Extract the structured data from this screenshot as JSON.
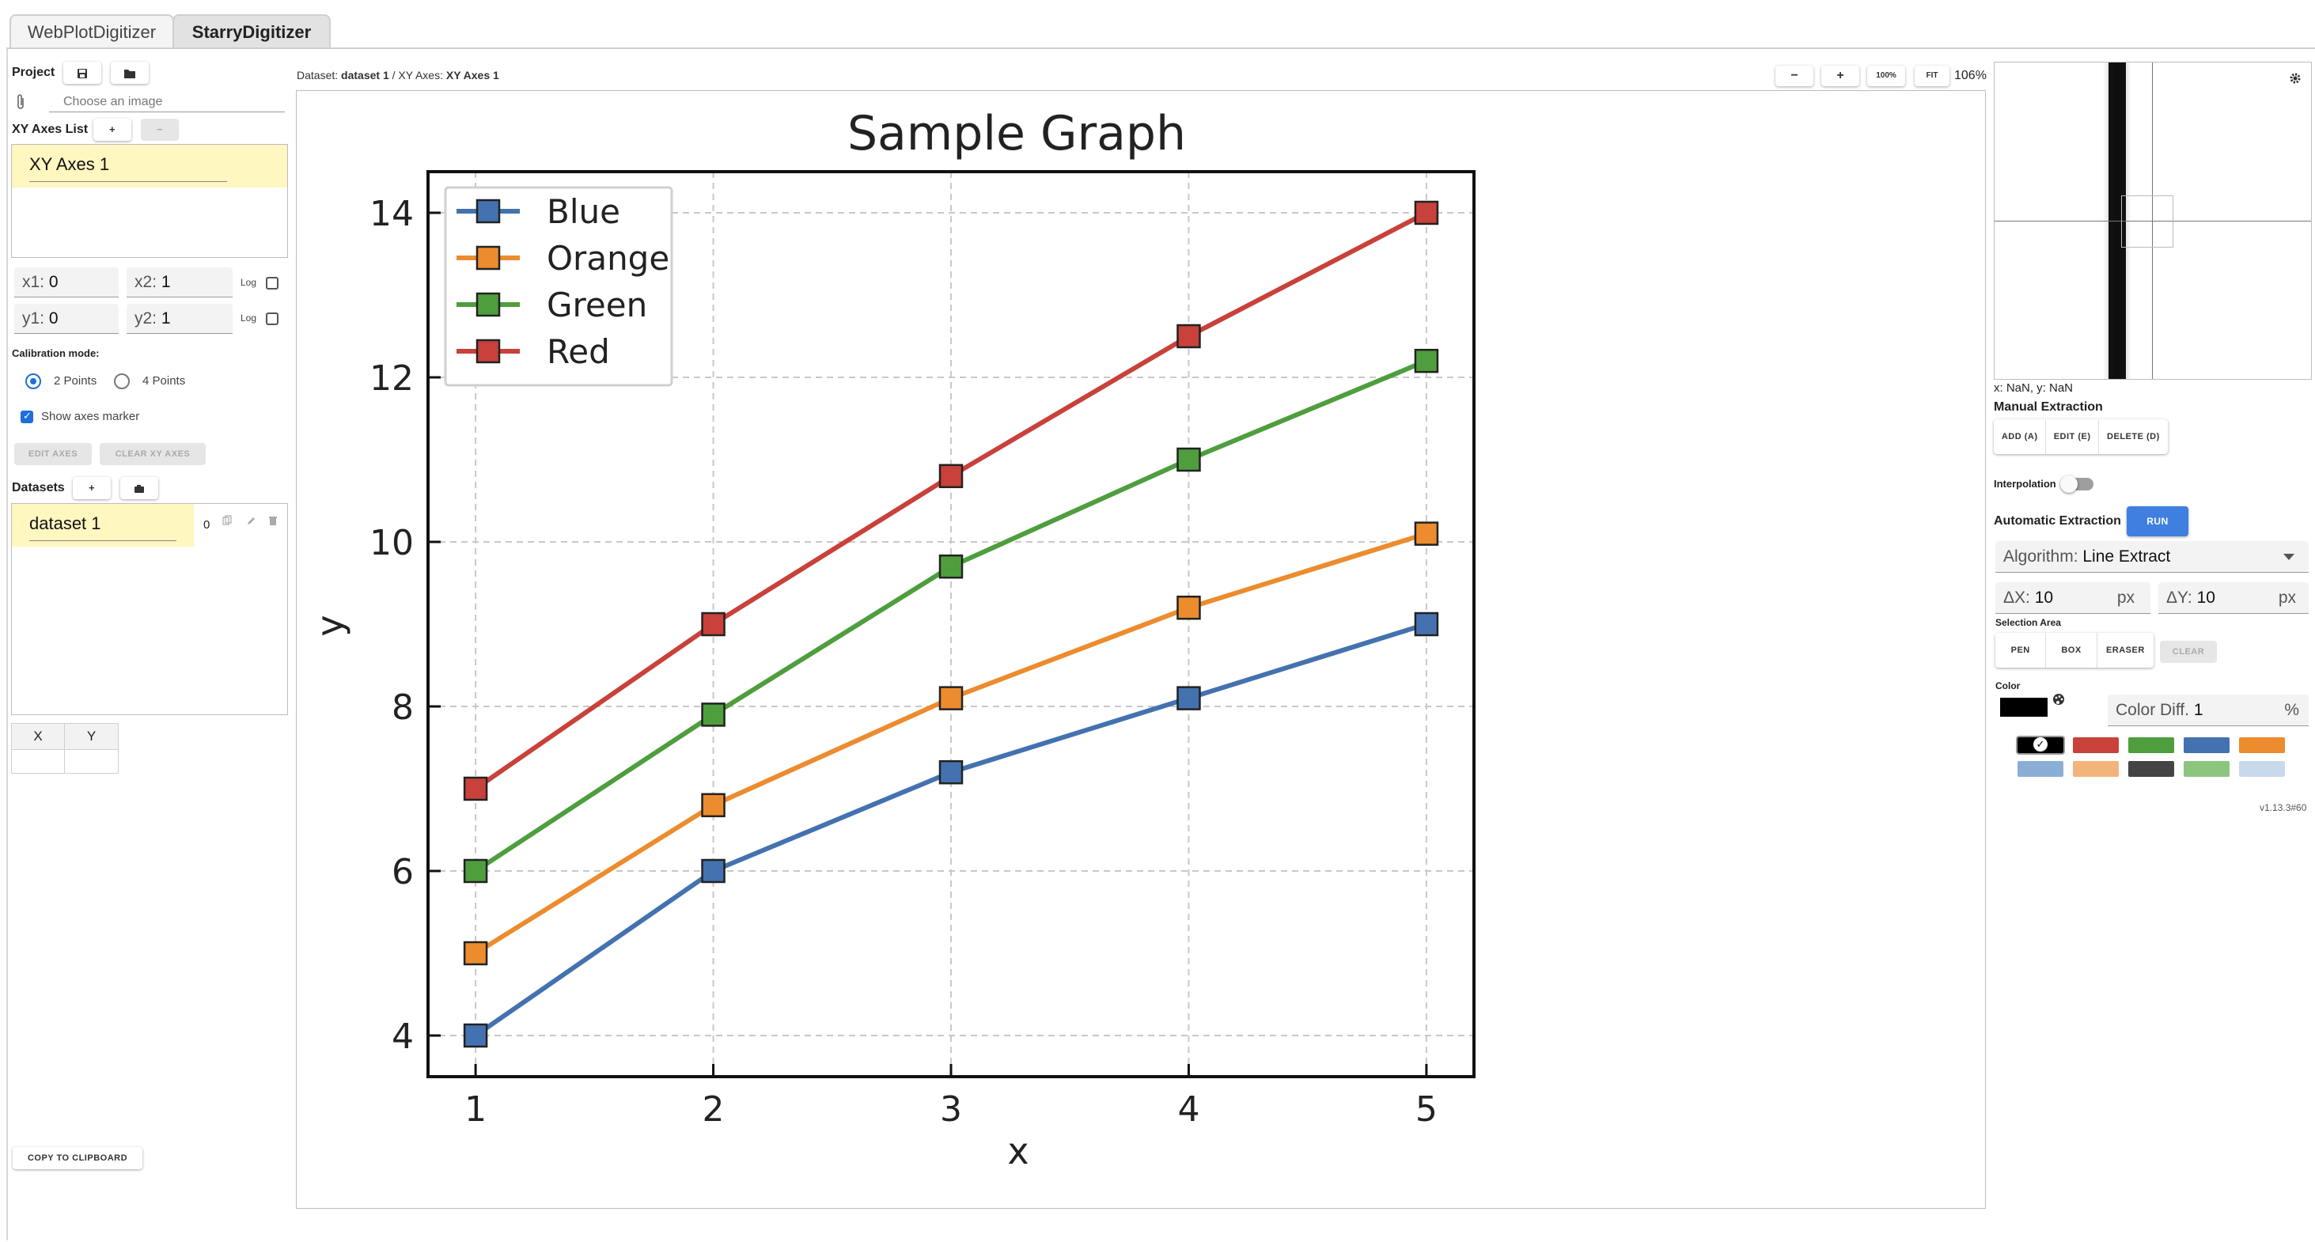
{
  "tabs": [
    {
      "label": "WebPlotDigitizer",
      "active": false
    },
    {
      "label": "StarryDigitizer",
      "active": true
    }
  ],
  "project": {
    "label": "Project",
    "save_icon": "floppy-icon",
    "open_icon": "folder-icon",
    "image_placeholder": "Choose an image"
  },
  "axes": {
    "list_label": "XY Axes List",
    "add_label": "+",
    "remove_label": "−",
    "items": [
      "XY Axes 1"
    ],
    "x1_label": "x1:",
    "x1": "0",
    "x2_label": "x2:",
    "x2": "1",
    "y1_label": "y1:",
    "y1": "0",
    "y2_label": "y2:",
    "y2": "1",
    "log_label": "Log",
    "calibration_label": "Calibration mode:",
    "mode_2": "2 Points",
    "mode_4": "4 Points",
    "show_marker_label": "Show axes marker",
    "edit_label": "EDIT AXES",
    "clear_label": "CLEAR XY AXES"
  },
  "datasets": {
    "label": "Datasets",
    "add_label": "+",
    "items": [
      {
        "name": "dataset 1",
        "count": "0"
      }
    ],
    "table_headers": [
      "X",
      "Y"
    ],
    "copy_label": "COPY TO CLIPBOARD"
  },
  "breadcrumb": {
    "dataset_prefix": "Dataset:",
    "dataset": "dataset 1",
    "sep": "/",
    "axes_prefix": "XY Axes:",
    "axes": "XY Axes 1"
  },
  "zoom": {
    "minus": "−",
    "plus": "+",
    "hundred": "100%",
    "fit": "FIT",
    "level": "106%"
  },
  "chart_data": {
    "type": "line",
    "title": "Sample Graph",
    "xlabel": "x",
    "ylabel": "y",
    "x": [
      1,
      2,
      3,
      4,
      5
    ],
    "xlim": [
      0.8,
      5.2
    ],
    "ylim": [
      3.5,
      14.5
    ],
    "xticks": [
      "1",
      "2",
      "3",
      "4",
      "5"
    ],
    "yticks": [
      "4",
      "6",
      "8",
      "10",
      "12",
      "14"
    ],
    "grid": true,
    "legend_position": "top-left",
    "series": [
      {
        "name": "Blue",
        "color": "#4472b0",
        "values": [
          4,
          6,
          7.2,
          8.1,
          9
        ]
      },
      {
        "name": "Orange",
        "color": "#ec8c2e",
        "values": [
          5,
          6.8,
          8.1,
          9.2,
          10.1
        ]
      },
      {
        "name": "Green",
        "color": "#4e9e3e",
        "values": [
          6,
          7.9,
          9.7,
          11,
          12.2
        ]
      },
      {
        "name": "Red",
        "color": "#c8413a",
        "values": [
          7,
          9,
          10.8,
          12.5,
          14
        ]
      }
    ]
  },
  "magnifier": {
    "settings_icon": "gear-icon",
    "coords": "x: NaN, y: NaN"
  },
  "manual": {
    "label": "Manual Extraction",
    "add": "ADD (A)",
    "edit": "EDIT (E)",
    "delete": "DELETE (D)"
  },
  "interpolation_label": "Interpolation",
  "automatic": {
    "label": "Automatic Extraction",
    "run": "RUN",
    "algorithm_label": "Algorithm:",
    "algorithm": "Line Extract",
    "dx_label": "ΔX:",
    "dx": "10",
    "dy_label": "ΔY:",
    "dy": "10",
    "unit": "px"
  },
  "selection": {
    "label": "Selection Area",
    "pen": "PEN",
    "box": "BOX",
    "eraser": "ERASER",
    "clear": "CLEAR"
  },
  "color": {
    "label": "Color",
    "current": "#000000",
    "palette_icon": "palette-icon",
    "diff_label": "Color Diff.",
    "diff": "1",
    "diff_unit": "%",
    "swatches": [
      "#000000",
      "#c8413a",
      "#4e9e3e",
      "#4472b0",
      "#ec8c2e",
      "#8aaed6",
      "#f2b47a",
      "#444444",
      "#8cc57e",
      "#c8d9ec"
    ]
  },
  "version": "v1.13.3#60"
}
